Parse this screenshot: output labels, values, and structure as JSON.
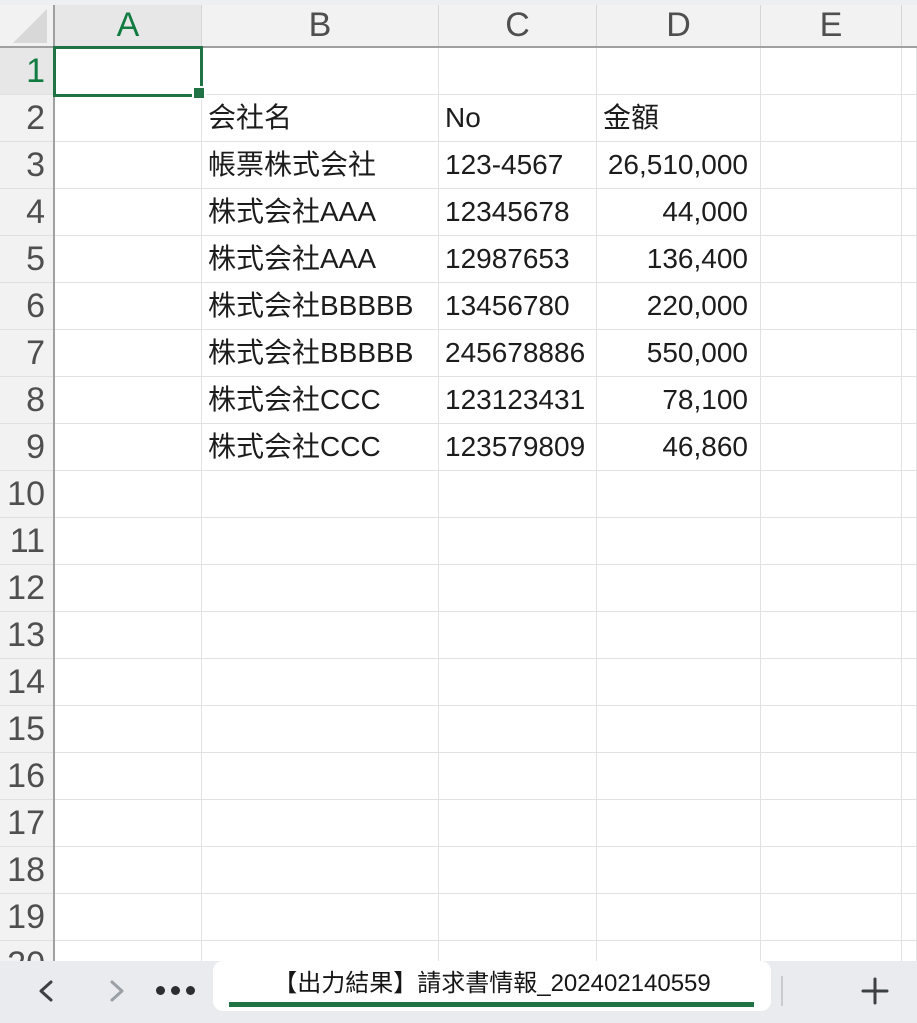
{
  "colors": {
    "accent_green": "#217346",
    "header_selected_text": "#107c41",
    "header_bg": "#f2f2f2",
    "header_selected_bg": "#e7e7e7",
    "gridline": "#e2e2e2",
    "sheet_bar_bg": "#e9ebee",
    "tab_underline": "#217346"
  },
  "grid": {
    "column_headers": [
      "A",
      "B",
      "C",
      "D",
      "E"
    ],
    "row_numbers": [
      "1",
      "2",
      "3",
      "4",
      "5",
      "6",
      "7",
      "8",
      "9",
      "10",
      "11",
      "12",
      "13",
      "14",
      "15",
      "16",
      "17",
      "18",
      "19",
      "20"
    ],
    "selected_cell": "A1",
    "rows": [
      {
        "n": 2,
        "b": "会社名",
        "c": "No",
        "d": "金額",
        "header": true
      },
      {
        "n": 3,
        "b": "帳票株式会社",
        "c": "123-4567",
        "d": "26,510,000"
      },
      {
        "n": 4,
        "b": "株式会社AAA",
        "c": "12345678",
        "d": "44,000"
      },
      {
        "n": 5,
        "b": "株式会社AAA",
        "c": "12987653",
        "d": "136,400"
      },
      {
        "n": 6,
        "b": "株式会社BBBBB",
        "c": "13456780",
        "d": "220,000"
      },
      {
        "n": 7,
        "b": "株式会社BBBBB",
        "c": "245678886",
        "d": "550,000"
      },
      {
        "n": 8,
        "b": "株式会社CCC",
        "c": "123123431",
        "d": "78,100"
      },
      {
        "n": 9,
        "b": "株式会社CCC",
        "c": "123579809",
        "d": "46,860"
      }
    ]
  },
  "sheet_bar": {
    "prev_icon": "chevron-left",
    "next_icon": "chevron-right",
    "more_icon": "ellipsis",
    "active_tab_label": "【出力結果】請求書情報_202402140559",
    "add_icon": "plus"
  }
}
